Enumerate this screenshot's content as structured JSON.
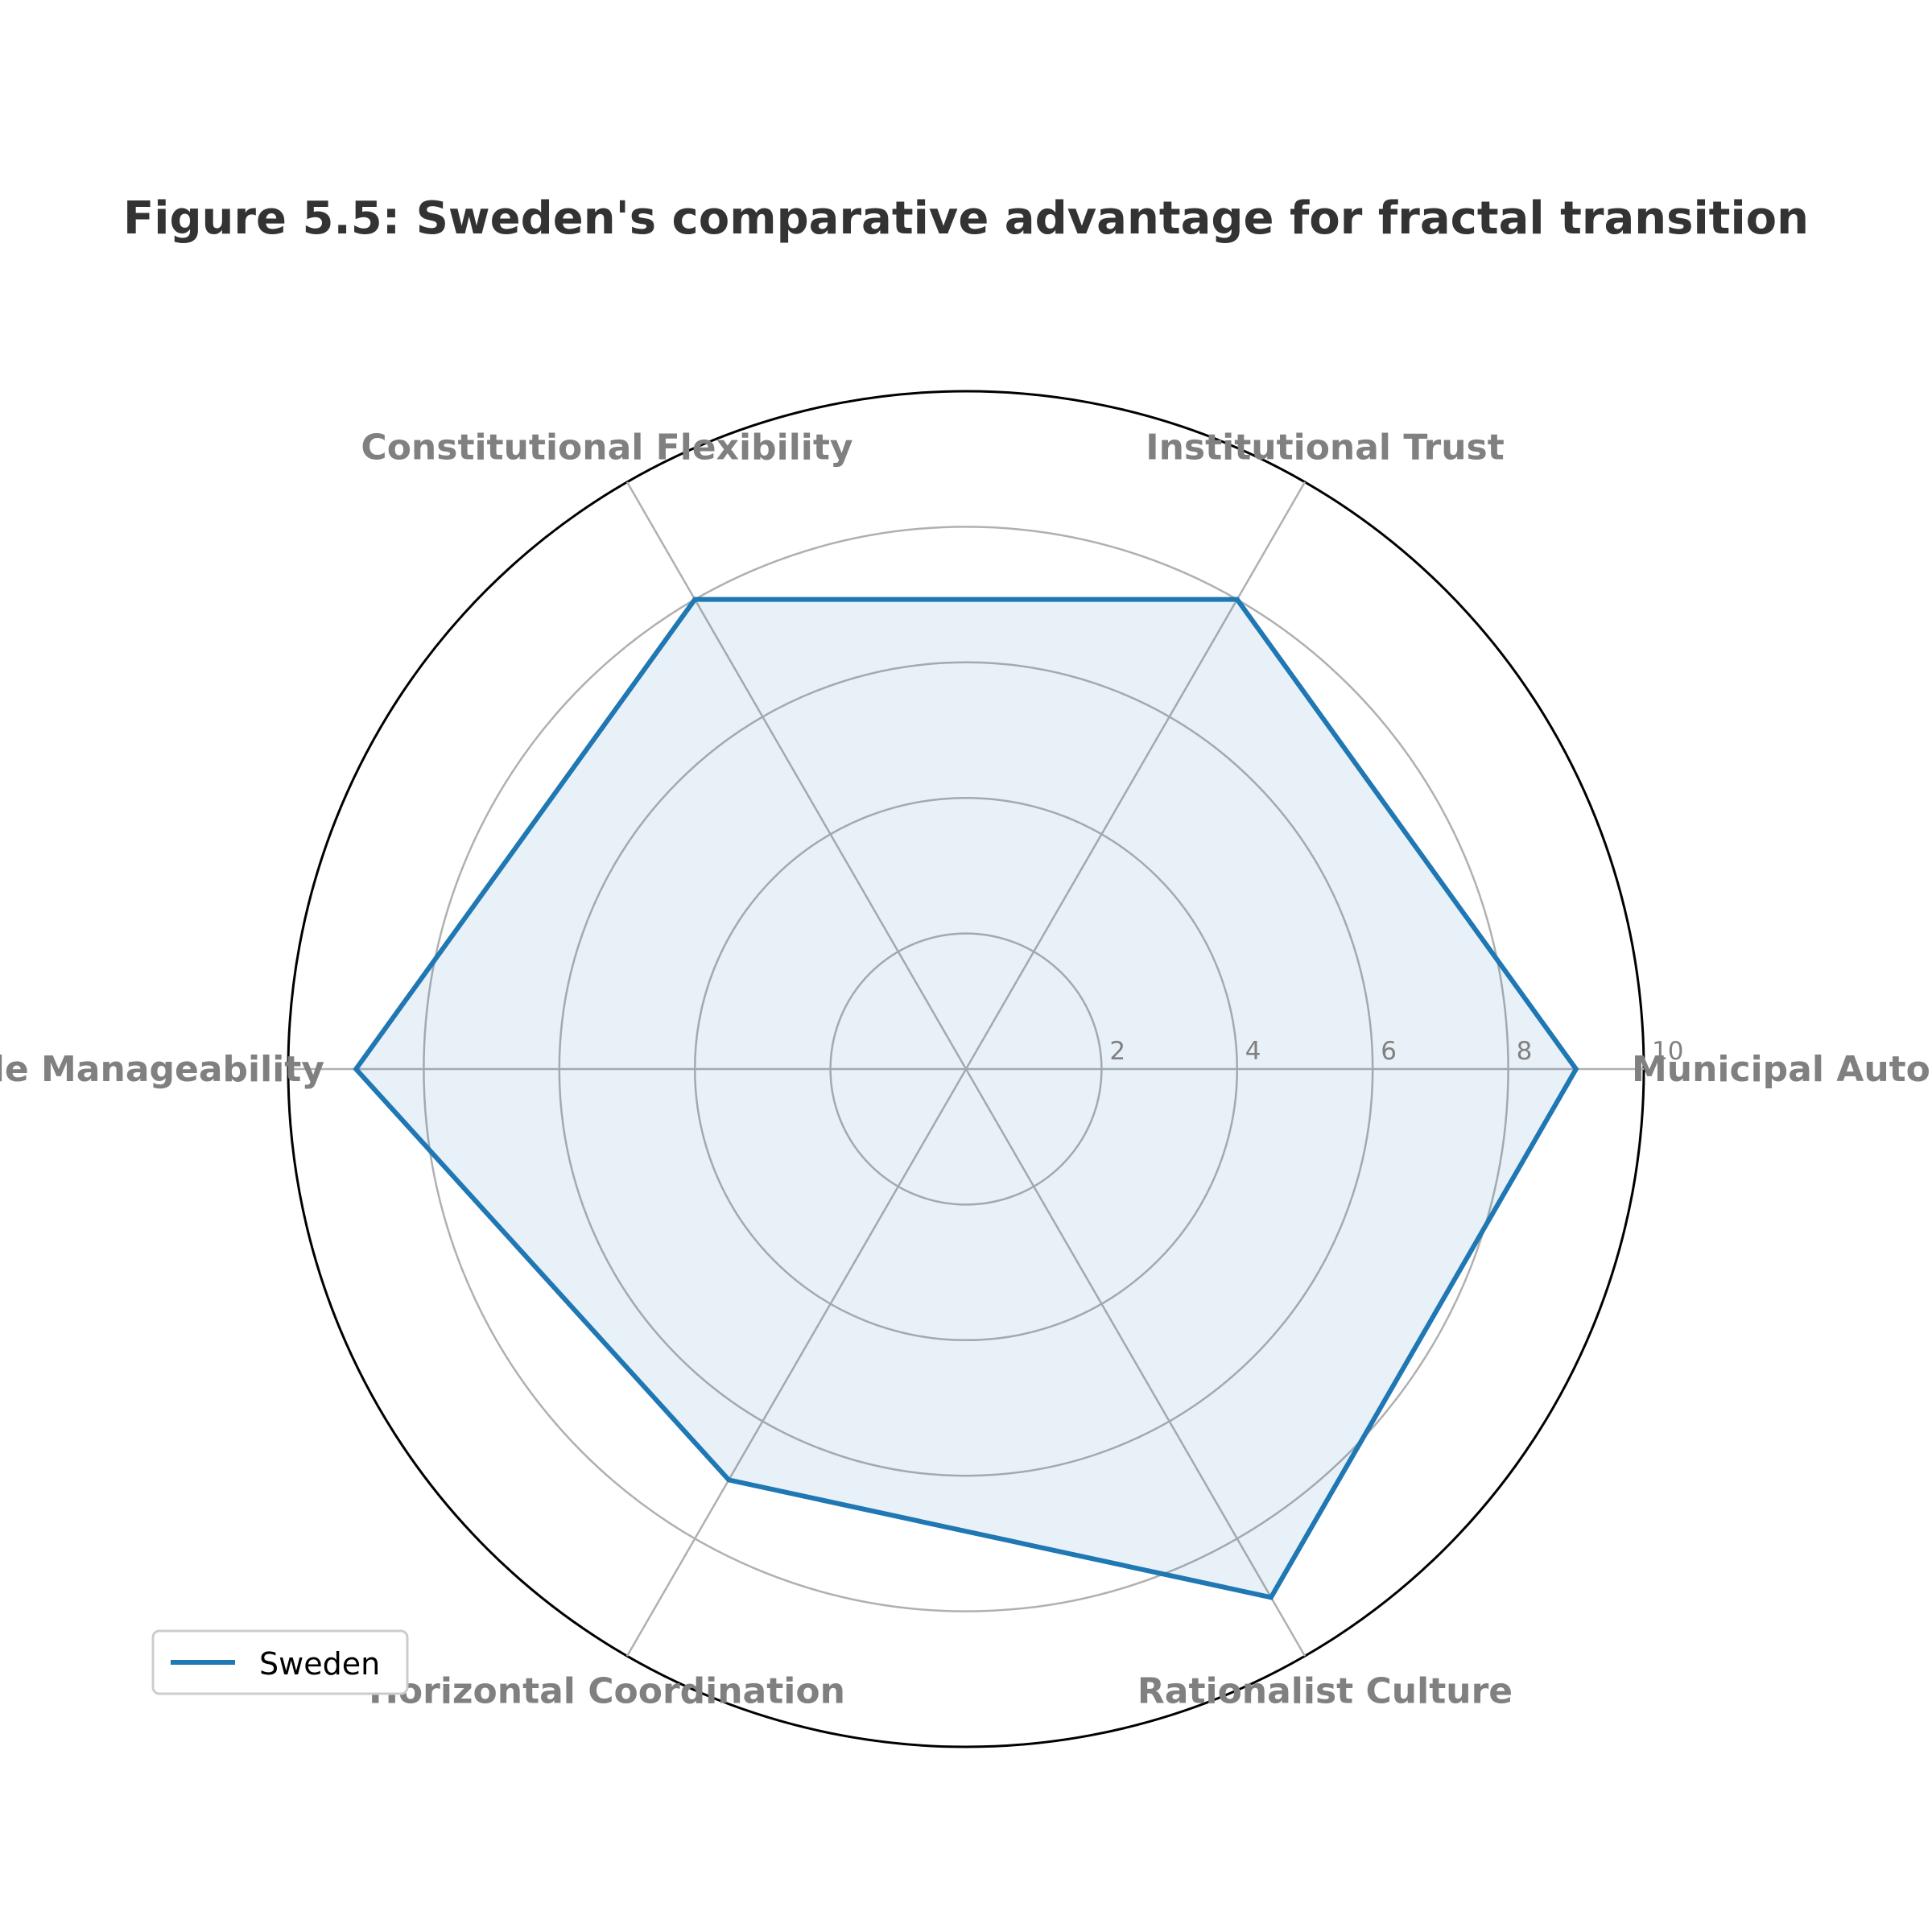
{
  "chart_data": {
    "type": "radar",
    "title": "Figure 5.5: Sweden's comparative advantage for fractal transition",
    "categories": [
      "Municipal Autonomy",
      "Institutional Trust",
      "Constitutional Flexibility",
      "Scale Manageability",
      "Horizontal Coordination",
      "Rationalist Culture"
    ],
    "series": [
      {
        "name": "Sweden",
        "values": [
          9,
          8,
          8,
          9,
          7,
          9
        ],
        "color": "#1f77b4"
      }
    ],
    "rlim": [
      0,
      10
    ],
    "rticks": [
      2,
      4,
      6,
      8,
      10
    ],
    "grid": true,
    "legend": "lower-left"
  }
}
